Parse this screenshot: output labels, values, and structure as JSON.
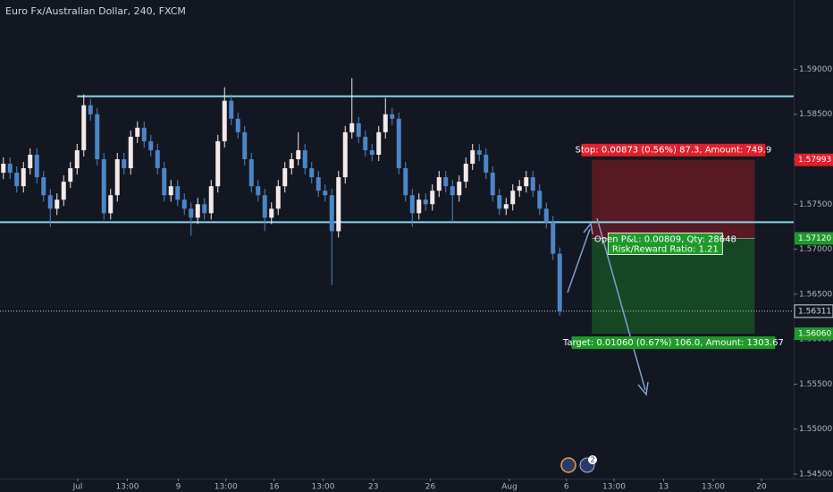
{
  "chart_data": {
    "type": "candlestick",
    "title": "Euro Fx/Australian Dollar, 240, FXCM",
    "open": [
      1.5785,
      1.5795,
      1.5785,
      1.577,
      1.579,
      1.5805,
      1.578,
      1.576,
      1.5745,
      1.5755,
      1.5775,
      1.579,
      1.581,
      1.586,
      1.585,
      1.58,
      1.574,
      1.576,
      1.58,
      1.579,
      1.5825,
      1.5835,
      1.582,
      1.581,
      1.579,
      1.576,
      1.577,
      1.5755,
      1.5745,
      1.5735,
      1.575,
      1.574,
      1.577,
      1.582,
      1.5865,
      1.5845,
      1.583,
      1.58,
      1.577,
      1.576,
      1.5735,
      1.5745,
      1.577,
      1.579,
      1.58,
      1.581,
      1.579,
      1.578,
      1.5765,
      1.576,
      1.572,
      1.578,
      1.583,
      1.584,
      1.5825,
      1.581,
      1.5805,
      1.583,
      1.585,
      1.5845,
      1.579,
      1.576,
      1.574,
      1.5755,
      1.575,
      1.5765,
      1.578,
      1.577,
      1.576,
      1.5775,
      1.5795,
      1.581,
      1.5805,
      1.5785,
      1.576,
      1.5745,
      1.575,
      1.5765,
      1.577,
      1.578,
      1.5765,
      1.5745,
      1.573,
      1.5695
    ],
    "high": [
      1.5802,
      1.5802,
      1.5792,
      1.5797,
      1.5812,
      1.5812,
      1.5787,
      1.5767,
      1.5762,
      1.5782,
      1.5797,
      1.5817,
      1.5872,
      1.5867,
      1.5857,
      1.5807,
      1.5767,
      1.5807,
      1.5807,
      1.5832,
      1.5842,
      1.5842,
      1.5827,
      1.5817,
      1.5797,
      1.5777,
      1.5777,
      1.5762,
      1.5752,
      1.5757,
      1.5757,
      1.5777,
      1.5827,
      1.588,
      1.5872,
      1.5852,
      1.5837,
      1.5807,
      1.5777,
      1.5767,
      1.5752,
      1.5777,
      1.5797,
      1.5807,
      1.583,
      1.5817,
      1.5797,
      1.5787,
      1.5772,
      1.5767,
      1.5787,
      1.5837,
      1.589,
      1.5847,
      1.5832,
      1.5817,
      1.5837,
      1.5868,
      1.5857,
      1.5852,
      1.5797,
      1.5767,
      1.5762,
      1.5762,
      1.5772,
      1.5787,
      1.5787,
      1.5777,
      1.5782,
      1.5802,
      1.5817,
      1.5817,
      1.5812,
      1.5792,
      1.5767,
      1.5757,
      1.5772,
      1.5777,
      1.5787,
      1.5787,
      1.5772,
      1.5752,
      1.5737,
      1.5702
    ],
    "low": [
      1.5778,
      1.5778,
      1.5763,
      1.5763,
      1.5783,
      1.5773,
      1.5753,
      1.5725,
      1.5738,
      1.5748,
      1.5768,
      1.5783,
      1.5803,
      1.5843,
      1.5793,
      1.5733,
      1.5733,
      1.5753,
      1.5783,
      1.5783,
      1.5818,
      1.5813,
      1.5803,
      1.5783,
      1.5753,
      1.5753,
      1.5748,
      1.5738,
      1.5715,
      1.5728,
      1.5733,
      1.5733,
      1.5763,
      1.5813,
      1.5838,
      1.5823,
      1.5793,
      1.5763,
      1.5753,
      1.572,
      1.5728,
      1.5738,
      1.5763,
      1.5783,
      1.5793,
      1.5783,
      1.5773,
      1.5758,
      1.5753,
      1.566,
      1.5713,
      1.5773,
      1.5823,
      1.5818,
      1.5803,
      1.5798,
      1.5798,
      1.5823,
      1.5838,
      1.5783,
      1.5753,
      1.5725,
      1.5733,
      1.5743,
      1.5743,
      1.5758,
      1.5763,
      1.573,
      1.5753,
      1.5768,
      1.5788,
      1.5798,
      1.5778,
      1.5753,
      1.5738,
      1.5738,
      1.5743,
      1.5758,
      1.5763,
      1.5758,
      1.5738,
      1.5723,
      1.5688,
      1.5626
    ],
    "close": [
      1.5795,
      1.5785,
      1.577,
      1.579,
      1.5805,
      1.578,
      1.576,
      1.5745,
      1.5755,
      1.5775,
      1.579,
      1.581,
      1.586,
      1.585,
      1.58,
      1.574,
      1.576,
      1.58,
      1.579,
      1.5825,
      1.5835,
      1.582,
      1.581,
      1.579,
      1.576,
      1.577,
      1.5755,
      1.5745,
      1.5735,
      1.575,
      1.574,
      1.577,
      1.582,
      1.5865,
      1.5845,
      1.583,
      1.58,
      1.577,
      1.576,
      1.5735,
      1.5745,
      1.577,
      1.579,
      1.58,
      1.581,
      1.579,
      1.578,
      1.5765,
      1.576,
      1.572,
      1.578,
      1.583,
      1.584,
      1.5825,
      1.581,
      1.5805,
      1.583,
      1.585,
      1.5845,
      1.579,
      1.576,
      1.574,
      1.5755,
      1.575,
      1.5765,
      1.578,
      1.577,
      1.576,
      1.5775,
      1.5795,
      1.581,
      1.5805,
      1.5785,
      1.576,
      1.5745,
      1.575,
      1.5765,
      1.577,
      1.578,
      1.5765,
      1.5745,
      1.573,
      1.5695,
      1.5631
    ],
    "up_color": "#f3e9e9",
    "down_color": "#4d86c6",
    "xlim": [
      -0.5,
      117.9
    ],
    "xticks": [
      {
        "value": 11.1,
        "label": "Jul"
      },
      {
        "value": 18.5,
        "label": "13:00"
      },
      {
        "value": 26.1,
        "label": "9"
      },
      {
        "value": 33.2,
        "label": "13:00"
      },
      {
        "value": 40.4,
        "label": "16"
      },
      {
        "value": 47.7,
        "label": "13:00"
      },
      {
        "value": 55.2,
        "label": "23"
      },
      {
        "value": 63.7,
        "label": "26"
      },
      {
        "value": 75.5,
        "label": "Aug"
      },
      {
        "value": 84,
        "label": "6"
      },
      {
        "value": 91.1,
        "label": "13:00"
      },
      {
        "value": 98.5,
        "label": "13"
      },
      {
        "value": 105.9,
        "label": "13:00"
      },
      {
        "value": 113.1,
        "label": "20"
      }
    ],
    "ylim": [
      1.5445,
      1.5977
    ],
    "yticks": [
      {
        "value": 1.59,
        "label": "1.59000"
      },
      {
        "value": 1.585,
        "label": "1.58500"
      },
      {
        "value": 1.58,
        "label": "1.58000"
      },
      {
        "value": 1.575,
        "label": "1.57500"
      },
      {
        "value": 1.57,
        "label": "1.57000"
      },
      {
        "value": 1.565,
        "label": "1.56500"
      },
      {
        "value": 1.56,
        "label": "1.56000"
      },
      {
        "value": 1.555,
        "label": "1.55500"
      },
      {
        "value": 1.55,
        "label": "1.55000"
      },
      {
        "value": 1.545,
        "label": "1.54500"
      }
    ],
    "last_price": 1.56311,
    "levels": [
      {
        "value": 1.587,
        "start": 11,
        "color": "#8fd3e8"
      },
      {
        "value": 1.573,
        "start": -0.5,
        "color": "#8fd3e8"
      }
    ],
    "position": {
      "start": 87.8,
      "end": 112.1,
      "stop": 1.57993,
      "entry": {
        "value": 1.5712,
        "label": "1.57120"
      },
      "target": {
        "value": 1.5606,
        "label": "1.56060"
      },
      "stop_label": "Stop: 0.00873 (0.56%) 87.3, Amount: 749.9",
      "entry_label": [
        "Open P&L: 0.00809, Qty: 28648",
        "Risk/Reward Ratio: 1.21"
      ],
      "target_label": "Target: 0.01060 (0.67%) 106.0, Amount: 1303.67"
    },
    "events_badge": "2"
  }
}
